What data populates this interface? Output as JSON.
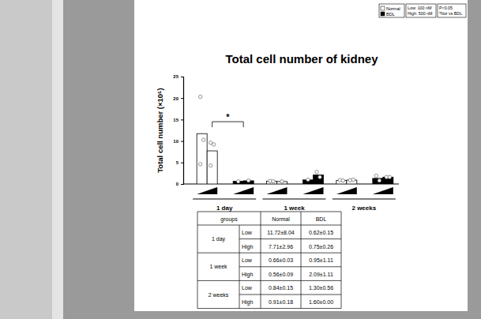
{
  "chart_data": {
    "type": "bar",
    "title": "Total cell number of kidney",
    "y_label": "Total cell number (×10⁵)",
    "categories": [
      "1 day",
      "1 week",
      "2 weeks"
    ],
    "doses": [
      "Low",
      "High"
    ],
    "ylim": [
      0,
      25
    ],
    "yticks": [
      0,
      5,
      10,
      15,
      20,
      25
    ],
    "legend": "top-right",
    "series": [
      {
        "name": "Normal",
        "color": "#ffffff",
        "marker": "circle",
        "values": [
          [
            11.72,
            7.71
          ],
          [
            0.66,
            0.56
          ],
          [
            0.84,
            0.91
          ]
        ],
        "points": [
          [
            [
              20.3,
              10.3,
              4.6
            ],
            [
              9.6,
              9.2,
              4.3
            ]
          ],
          [
            [
              0.7,
              0.6
            ],
            [
              0.6
            ]
          ],
          [
            [
              0.9,
              0.8
            ],
            [
              0.9,
              1.0
            ]
          ]
        ]
      },
      {
        "name": "BDL",
        "color": "#000000",
        "marker": "circle",
        "values": [
          [
            0.62,
            0.75
          ],
          [
            0.95,
            2.09
          ],
          [
            1.3,
            1.6
          ]
        ],
        "points": [
          [
            [
              0.6
            ],
            [
              0.8
            ]
          ],
          [
            [
              1.0
            ],
            [
              2.8,
              1.6
            ]
          ],
          [
            [
              1.9,
              0.8
            ],
            [
              1.6,
              1.6
            ]
          ]
        ]
      }
    ],
    "significance": [
      {
        "label": "*",
        "category": 0,
        "y": 14.5
      }
    ],
    "notes": [
      [
        "Low: 100 nM",
        "High: 500 nM"
      ],
      [
        "P<0.05",
        "*Nor vs BDL"
      ]
    ]
  },
  "table": {
    "header": [
      "groups",
      "Normal",
      "BDL"
    ],
    "groups": [
      {
        "label": "1 day",
        "rows": [
          {
            "dose": "Low",
            "cells": [
              "11.72±8.04",
              "0.62±0.15"
            ]
          },
          {
            "dose": "High",
            "cells": [
              "7.71±2.96",
              "0.75±0.26"
            ]
          }
        ]
      },
      {
        "label": "1 week",
        "rows": [
          {
            "dose": "Low",
            "cells": [
              "0.66±0.03",
              "0.95±1.11"
            ]
          },
          {
            "dose": "High",
            "cells": [
              "0.56±0.09",
              "2.09±1.11"
            ]
          }
        ]
      },
      {
        "label": "2 weeks",
        "rows": [
          {
            "dose": "Low",
            "cells": [
              "0.84±0.15",
              "1.30±0.56"
            ]
          },
          {
            "dose": "High",
            "cells": [
              "0.91±0.18",
              "1.60±0.00"
            ]
          }
        ]
      }
    ]
  }
}
